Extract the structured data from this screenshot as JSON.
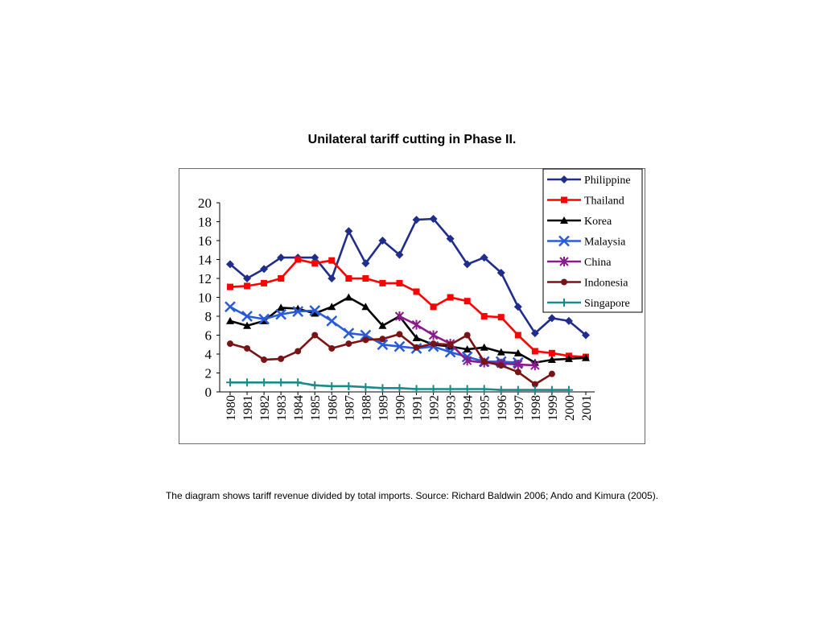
{
  "title": "Unilateral tariff cutting in Phase II.",
  "caption": "The diagram shows tariff revenue divided by total imports. Source: Richard Baldwin 2006; Ando and Kimura (2005).",
  "chart_data": {
    "type": "line",
    "title": "Unilateral tariff cutting in Phase II.",
    "xlabel": "",
    "ylabel": "",
    "x": [
      "1980",
      "1981",
      "1982",
      "1983",
      "1984",
      "1985",
      "1986",
      "1987",
      "1988",
      "1989",
      "1990",
      "1991",
      "1992",
      "1993",
      "1994",
      "1995",
      "1996",
      "1997",
      "1998",
      "1999",
      "2000",
      "2001"
    ],
    "ylim": [
      0,
      20
    ],
    "yticks": [
      0,
      2,
      4,
      6,
      8,
      10,
      12,
      14,
      16,
      18,
      20
    ],
    "grid": false,
    "legend": "top-right",
    "series": [
      {
        "name": "Philippine",
        "color": "#1f2d8c",
        "marker": "diamond",
        "values": [
          13.5,
          12.0,
          13.0,
          14.2,
          14.2,
          14.2,
          12.0,
          17.0,
          13.6,
          16.0,
          14.5,
          18.2,
          18.3,
          16.2,
          13.5,
          14.2,
          12.6,
          9.0,
          6.2,
          7.8,
          7.5,
          6.0
        ]
      },
      {
        "name": "Thailand",
        "color": "#ff0000",
        "marker": "square",
        "values": [
          11.1,
          11.2,
          11.5,
          12.0,
          14.0,
          13.6,
          13.9,
          12.0,
          12.0,
          11.5,
          11.5,
          10.6,
          9.0,
          10.0,
          9.6,
          8.0,
          7.9,
          6.0,
          4.3,
          4.1,
          3.8,
          3.7
        ]
      },
      {
        "name": "Korea",
        "color": "#000000",
        "marker": "triangle",
        "values": [
          7.5,
          7.0,
          7.5,
          8.9,
          8.8,
          8.3,
          9.0,
          10.0,
          9.0,
          7.0,
          8.0,
          5.7,
          5.0,
          4.8,
          4.5,
          4.7,
          4.2,
          4.1,
          3.1,
          3.4,
          3.5,
          3.6
        ]
      },
      {
        "name": "Malaysia",
        "color": "#2a5bd7",
        "marker": "x",
        "values": [
          9.0,
          8.0,
          7.7,
          8.2,
          8.5,
          8.6,
          7.5,
          6.2,
          6.0,
          5.0,
          4.8,
          4.6,
          4.8,
          4.2,
          3.7,
          3.2,
          3.2,
          3.1,
          null,
          null,
          null,
          null
        ]
      },
      {
        "name": "China",
        "color": "#8b1a8b",
        "marker": "asterisk",
        "values": [
          null,
          null,
          null,
          null,
          null,
          null,
          null,
          null,
          null,
          null,
          8.0,
          7.1,
          6.0,
          5.1,
          3.3,
          3.1,
          3.0,
          2.9,
          2.8,
          null,
          null,
          null
        ]
      },
      {
        "name": "Indonesia",
        "color": "#7a1414",
        "marker": "circle",
        "values": [
          5.1,
          4.6,
          3.4,
          3.5,
          4.3,
          6.0,
          4.6,
          5.1,
          5.5,
          5.6,
          6.1,
          4.7,
          5.1,
          5.0,
          6.0,
          3.2,
          2.8,
          2.1,
          0.8,
          1.9,
          null,
          null
        ]
      },
      {
        "name": "Singapore",
        "color": "#1a8a8a",
        "marker": "plus",
        "values": [
          1.0,
          1.0,
          1.0,
          1.0,
          1.0,
          0.7,
          0.6,
          0.6,
          0.5,
          0.4,
          0.4,
          0.3,
          0.3,
          0.3,
          0.3,
          0.3,
          0.2,
          0.2,
          0.2,
          0.2,
          0.2,
          null
        ]
      }
    ]
  }
}
